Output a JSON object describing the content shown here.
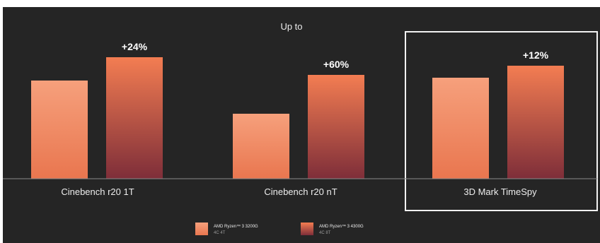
{
  "chart_data": {
    "type": "bar",
    "title": "Up to",
    "categories": [
      "Cinebench r20 1T",
      "Cinebench r20 nT",
      "3D Mark TimeSpy"
    ],
    "series": [
      {
        "name": "AMD Ryzen™ 3 3200G",
        "sub": "4C 4T",
        "values": [
          100,
          100,
          100
        ]
      },
      {
        "name": "AMD Ryzen™ 3 4300G",
        "sub": "4C 8T",
        "values": [
          124,
          160,
          112
        ]
      }
    ],
    "data_labels": [
      "+24%",
      "+60%",
      "+12%"
    ],
    "highlighted_category": "3D Mark TimeSpy",
    "grid": false,
    "legend_position": "bottom-center",
    "colors": {
      "background": "#252525",
      "axis_line": "#8a8a8a",
      "series1_top": "#f6a07c",
      "series1_bottom": "#e9764f",
      "series2_top": "#f37d52",
      "series2_bottom": "#7e2e39",
      "highlight_border": "#f2f2f2"
    }
  }
}
